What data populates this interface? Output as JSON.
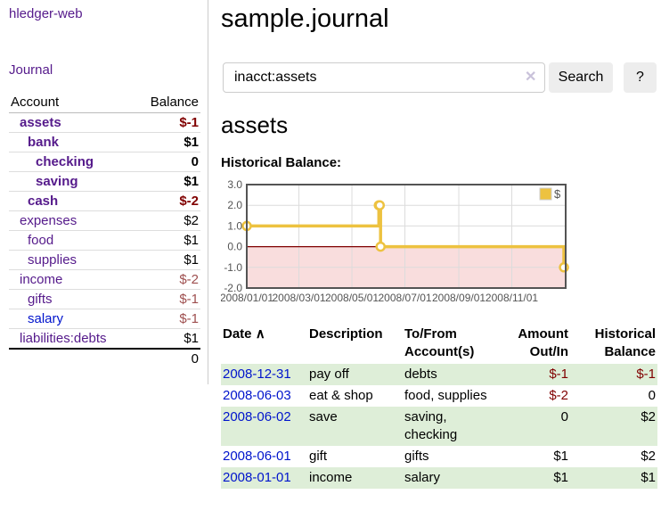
{
  "palette": {
    "purple": "#551a8b",
    "blue": "#0014cc",
    "negative": "#800000",
    "negative-soft": "#9e4f4f",
    "row-green": "#deeed8",
    "gold": "#edc240"
  },
  "sidebar": {
    "brand": "hledger-web",
    "journal_link": "Journal",
    "columns": {
      "account": "Account",
      "balance": "Balance"
    },
    "accounts": [
      {
        "name": "assets",
        "depth": 0,
        "bold": true,
        "balance": "$-1",
        "negative": true
      },
      {
        "name": "bank",
        "depth": 1,
        "bold": true,
        "balance": "$1",
        "negative": false
      },
      {
        "name": "checking",
        "depth": 2,
        "bold": true,
        "balance": "0",
        "negative": false
      },
      {
        "name": "saving",
        "depth": 2,
        "bold": true,
        "balance": "$1",
        "negative": false
      },
      {
        "name": "cash",
        "depth": 1,
        "bold": true,
        "balance": "$-2",
        "negative": true
      },
      {
        "name": "expenses",
        "depth": 0,
        "bold": false,
        "balance": "$2",
        "negative": false
      },
      {
        "name": "food",
        "depth": 1,
        "bold": false,
        "balance": "$1",
        "negative": false
      },
      {
        "name": "supplies",
        "depth": 1,
        "bold": false,
        "balance": "$1",
        "negative": false
      },
      {
        "name": "income",
        "depth": 0,
        "bold": false,
        "balance": "$-2",
        "negative": true
      },
      {
        "name": "gifts",
        "depth": 1,
        "bold": false,
        "balance": "$-1",
        "negative": true
      },
      {
        "name": "salary",
        "depth": 1,
        "bold": false,
        "balance": "$-1",
        "negative": true,
        "blue": true
      },
      {
        "name": "liabilities:debts",
        "depth": 0,
        "bold": false,
        "balance": "$1",
        "negative": false
      }
    ],
    "total": "0"
  },
  "main": {
    "title": "sample.journal",
    "search": {
      "value": "inacct:assets",
      "clear": "✕",
      "button": "Search",
      "help": "?"
    },
    "heading": "assets"
  },
  "chart_data": {
    "type": "line",
    "step": true,
    "title": "Historical Balance:",
    "ylim": [
      -2.0,
      3.0
    ],
    "yticks": [
      3.0,
      2.0,
      1.0,
      0.0,
      -1.0,
      -2.0
    ],
    "xticks": [
      "2008/01/01",
      "2008/03/01",
      "2008/05/01",
      "2008/07/01",
      "2008/09/01",
      "2008/11/01"
    ],
    "series": [
      {
        "name": "$",
        "color": "#edc240",
        "points": [
          {
            "x": "2008-01-01",
            "y": 1
          },
          {
            "x": "2008-06-01",
            "y": 2
          },
          {
            "x": "2008-06-02",
            "y": 2
          },
          {
            "x": "2008-06-03",
            "y": 0
          },
          {
            "x": "2008-12-31",
            "y": -1
          }
        ]
      }
    ],
    "legend": [
      "$"
    ],
    "legend_position": "top-right",
    "grid": true,
    "negative_region_color": "#f9dddd",
    "zero_line_color": "#800000"
  },
  "register": {
    "columns": {
      "date": "Date",
      "description": "Description",
      "accounts": "To/From Account(s)",
      "amount": "Amount Out/In",
      "balance": "Historical Balance"
    },
    "sort_indicator": "∧",
    "rows": [
      {
        "date": "2008-12-31",
        "description": "pay off",
        "accounts": "debts",
        "amount": "$-1",
        "amount_negative": true,
        "balance": "$-1",
        "balance_negative": true
      },
      {
        "date": "2008-06-03",
        "description": "eat & shop",
        "accounts": "food, supplies",
        "amount": "$-2",
        "amount_negative": true,
        "balance": "0",
        "balance_negative": false
      },
      {
        "date": "2008-06-02",
        "description": "save",
        "accounts": "saving, checking",
        "amount": "0",
        "amount_negative": false,
        "balance": "$2",
        "balance_negative": false
      },
      {
        "date": "2008-06-01",
        "description": "gift",
        "accounts": "gifts",
        "amount": "$1",
        "amount_negative": false,
        "balance": "$2",
        "balance_negative": false
      },
      {
        "date": "2008-01-01",
        "description": "income",
        "accounts": "salary",
        "amount": "$1",
        "amount_negative": false,
        "balance": "$1",
        "balance_negative": false
      }
    ]
  }
}
